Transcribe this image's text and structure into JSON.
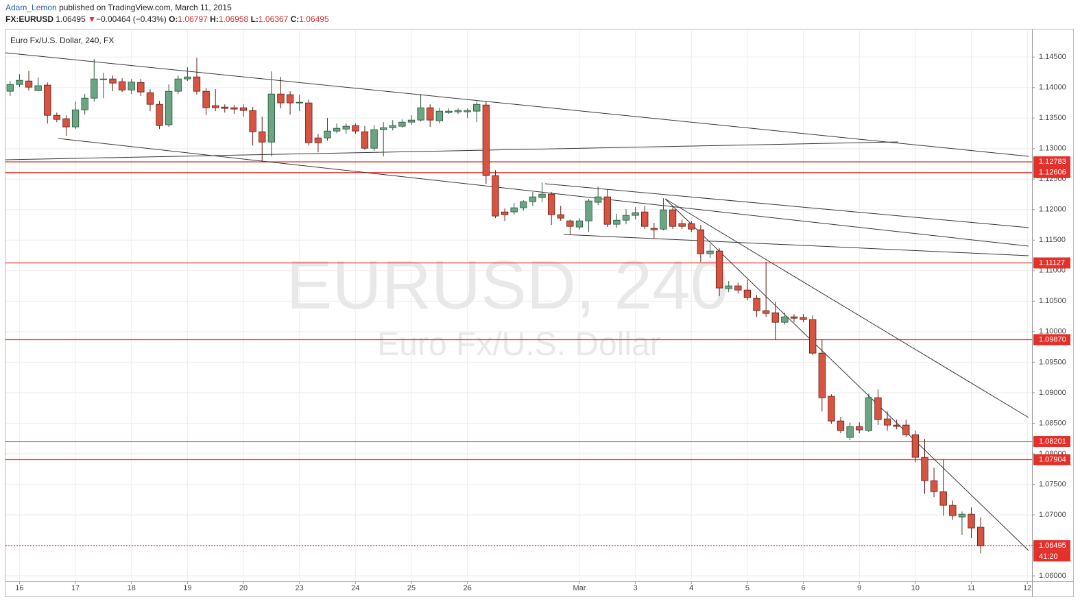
{
  "header": {
    "author": "Adam_Lemon",
    "published": "published on TradingView.com, March 11, 2015",
    "symbol": "FX:EURUSD",
    "price": "1.06495",
    "arrow": "▼",
    "change": "−0.00464 (−0.43%)",
    "ohlc": [
      {
        "label": "O:",
        "value": "1.06797"
      },
      {
        "label": "H:",
        "value": "1.06958"
      },
      {
        "label": "L:",
        "value": "1.06367"
      },
      {
        "label": "C:",
        "value": "1.06495"
      }
    ]
  },
  "chart_data": {
    "type": "candlestick",
    "legend": "Euro Fx/U.S. Dollar, 240, FX",
    "watermark": [
      "EURUSD, 240",
      "Euro Fx/U.S. Dollar"
    ],
    "categories": [
      null,
      "16",
      null,
      null,
      null,
      null,
      null,
      "17",
      null,
      null,
      null,
      null,
      null,
      "18",
      null,
      null,
      null,
      null,
      null,
      "19",
      null,
      null,
      null,
      null,
      null,
      "20",
      null,
      null,
      null,
      null,
      null,
      "23",
      null,
      null,
      null,
      null,
      null,
      "24",
      null,
      null,
      null,
      null,
      null,
      "25",
      null,
      null,
      null,
      null,
      null,
      "26",
      null,
      null,
      null,
      null,
      null,
      null,
      null,
      null,
      null,
      null,
      null,
      "Mar",
      null,
      null,
      null,
      null,
      null,
      "3",
      null,
      null,
      null,
      null,
      null,
      "4",
      null,
      null,
      null,
      null,
      null,
      "5",
      null,
      null,
      null,
      null,
      null,
      "6",
      null,
      null,
      null,
      null,
      null,
      "9",
      null,
      null,
      null,
      null,
      null,
      "10",
      null,
      null,
      null,
      null,
      null,
      "11",
      null,
      null,
      null,
      null,
      null,
      "12"
    ],
    "series": {
      "name": "EURUSD",
      "up_color": "#6ba583",
      "down_color": "#d75442",
      "open": [
        1.13939,
        1.14051,
        1.14107,
        1.1395,
        1.1404,
        1.13545,
        1.13489,
        1.13355,
        1.13635,
        1.13826,
        1.14129,
        1.14141,
        1.14096,
        1.1396,
        1.14084,
        1.13916,
        1.13725,
        1.13389,
        1.13939,
        1.14141,
        1.14174,
        1.13939,
        1.13703,
        1.1368,
        1.13669,
        1.13669,
        1.13624,
        1.13276,
        1.13107,
        1.13894,
        1.13883,
        1.13759,
        1.13748,
        1.13175,
        1.13175,
        1.13287,
        1.1332,
        1.13377,
        1.13276,
        1.13006,
        1.1331,
        1.13343,
        1.13366,
        1.13433,
        1.13467,
        1.13669,
        1.13456,
        1.1359,
        1.13602,
        1.13602,
        1.13613,
        1.13714,
        1.12557,
        1.11962,
        1.11962,
        1.1203,
        1.1213,
        1.12198,
        1.12254,
        1.11917,
        1.11816,
        1.11715,
        1.11816,
        1.1212,
        1.12209,
        1.1176,
        1.11827,
        1.11906,
        1.11962,
        1.11693,
        1.11681,
        1.11996,
        1.11771,
        1.11771,
        1.1167,
        1.11277,
        1.11322,
        1.10705,
        1.1075,
        1.10682,
        1.10547,
        1.10345,
        1.10311,
        1.10154,
        1.10244,
        1.10233,
        1.10199,
        1.09649,
        1.08942,
        1.08537,
        1.08268,
        1.08448,
        1.0838,
        1.08919,
        1.08571,
        1.0847,
        1.0847,
        1.08313,
        1.07942,
        1.0756,
        1.0738,
        1.07156,
        1.06965,
        1.0701,
        1.06797,
        null,
        null,
        null,
        null,
        null
      ],
      "high": [
        1.14107,
        1.14219,
        1.14275,
        1.14163,
        1.14084,
        1.1359,
        1.13545,
        1.1377,
        1.13894,
        1.14466,
        1.14242,
        1.14197,
        1.14152,
        1.14141,
        1.14141,
        1.13972,
        1.13781,
        1.14051,
        1.14197,
        1.14332,
        1.14489,
        1.13995,
        1.13972,
        1.13725,
        1.13714,
        1.13725,
        1.1368,
        1.13523,
        1.14264,
        1.14174,
        1.13939,
        1.13883,
        1.13804,
        1.13242,
        1.135,
        1.13411,
        1.13411,
        1.13411,
        1.13366,
        1.13388,
        1.13433,
        1.13467,
        1.13478,
        1.13545,
        1.13894,
        1.13725,
        1.13669,
        1.13658,
        1.13658,
        1.13658,
        1.1377,
        1.1377,
        1.12647,
        1.12018,
        1.12108,
        1.12153,
        1.12288,
        1.12445,
        1.12288,
        1.12063,
        1.11838,
        1.11861,
        1.12175,
        1.12378,
        1.12333,
        1.11928,
        1.12007,
        1.12041,
        1.12063,
        1.11782,
        1.12187,
        1.12041,
        1.11838,
        1.11816,
        1.11748,
        1.11434,
        1.11367,
        1.10828,
        1.10806,
        1.10851,
        1.10604,
        1.11142,
        1.10491,
        1.10312,
        1.10289,
        1.10289,
        1.10267,
        1.09874,
        1.08975,
        1.08605,
        1.08514,
        1.08514,
        1.08986,
        1.09053,
        1.08694,
        1.08559,
        1.08559,
        1.0838,
        1.08245,
        1.07773,
        1.07908,
        1.07234,
        1.07054,
        1.07122,
        1.06958,
        null,
        null,
        null,
        null,
        null
      ],
      "low": [
        1.1386,
        1.14006,
        1.1395,
        1.13939,
        1.1341,
        1.13433,
        1.13209,
        1.13321,
        1.13557,
        1.1377,
        1.13826,
        1.13939,
        1.13927,
        1.13894,
        1.1386,
        1.13613,
        1.13321,
        1.13355,
        1.13894,
        1.14107,
        1.13883,
        1.13545,
        1.13613,
        1.1359,
        1.13568,
        1.13523,
        1.13051,
        1.12793,
        1.12872,
        1.13658,
        1.13557,
        1.13613,
        1.13051,
        1.12939,
        1.1313,
        1.13253,
        1.13242,
        1.13242,
        1.12984,
        1.12961,
        1.12872,
        1.13298,
        1.13343,
        1.13388,
        1.13444,
        1.13355,
        1.1341,
        1.13568,
        1.13568,
        1.135,
        1.13433,
        1.12422,
        1.11861,
        1.11816,
        1.11917,
        1.11985,
        1.12063,
        1.12119,
        1.11748,
        1.11816,
        1.11591,
        1.1167,
        1.11636,
        1.12074,
        1.11715,
        1.11704,
        1.1176,
        1.11838,
        1.11681,
        1.11524,
        1.11659,
        1.11681,
        1.11681,
        1.11636,
        1.11142,
        1.1121,
        1.10581,
        1.10648,
        1.10626,
        1.10513,
        1.10244,
        1.10244,
        1.09862,
        1.1012,
        1.10154,
        1.10154,
        1.09615,
        1.08694,
        1.08492,
        1.08335,
        1.08223,
        1.08335,
        1.08357,
        1.0847,
        1.0838,
        1.08402,
        1.08279,
        1.07863,
        1.07346,
        1.0729,
        1.06987,
        1.0692,
        1.06673,
        1.06617,
        1.06367,
        null,
        null,
        null,
        null,
        null
      ],
      "close": [
        1.14051,
        1.14118,
        1.14006,
        1.1403,
        1.13545,
        1.13478,
        1.13355,
        1.13635,
        1.13826,
        1.14141,
        1.14141,
        1.14073,
        1.1396,
        1.1409,
        1.13927,
        1.13725,
        1.13377,
        1.13939,
        1.14141,
        1.14174,
        1.13939,
        1.13669,
        1.13669,
        1.13658,
        1.13647,
        1.13624,
        1.13276,
        1.13107,
        1.13894,
        1.13748,
        1.13748,
        1.13759,
        1.13096,
        1.13096,
        1.13287,
        1.13332,
        1.13366,
        1.13287,
        1.13006,
        1.1331,
        1.13343,
        1.13377,
        1.13433,
        1.13467,
        1.13669,
        1.13467,
        1.13613,
        1.13613,
        1.13624,
        1.13624,
        1.13725,
        1.12557,
        1.11895,
        1.11917,
        1.1203,
        1.1213,
        1.12209,
        1.12254,
        1.11917,
        1.11861,
        1.11726,
        1.11816,
        1.12142,
        1.12209,
        1.1176,
        1.11827,
        1.11906,
        1.11951,
        1.11726,
        1.1167,
        1.11996,
        1.11726,
        1.11726,
        1.11681,
        1.11277,
        1.11322,
        1.10716,
        1.1075,
        1.10682,
        1.10558,
        1.10345,
        1.103,
        1.10154,
        1.10244,
        1.10221,
        1.10199,
        1.09649,
        1.08919,
        1.08537,
        1.0838,
        1.08448,
        1.08391,
        1.08919,
        1.0856,
        1.0847,
        1.08448,
        1.08313,
        1.07942,
        1.0756,
        1.0738,
        1.07156,
        1.06987,
        1.0701,
        1.06785,
        1.06495,
        null,
        null,
        null,
        null,
        null
      ]
    },
    "ylim": [
      1.0591,
      1.1494
    ],
    "yticks": [
      {
        "value": 1.06,
        "label": "1.06000"
      },
      {
        "value": 1.065,
        "label": "1.06500"
      },
      {
        "value": 1.07,
        "label": "1.07000"
      },
      {
        "value": 1.075,
        "label": "1.07500"
      },
      {
        "value": 1.08,
        "label": "1.08000"
      },
      {
        "value": 1.085,
        "label": "1.08500"
      },
      {
        "value": 1.09,
        "label": "1.09000"
      },
      {
        "value": 1.095,
        "label": "1.09500"
      },
      {
        "value": 1.1,
        "label": "1.10000"
      },
      {
        "value": 1.105,
        "label": "1.10500"
      },
      {
        "value": 1.11,
        "label": "1.11000"
      },
      {
        "value": 1.115,
        "label": "1.11500"
      },
      {
        "value": 1.12,
        "label": "1.12000"
      },
      {
        "value": 1.125,
        "label": "1.12500"
      },
      {
        "value": 1.13,
        "label": "1.13000"
      },
      {
        "value": 1.135,
        "label": "1.13500"
      },
      {
        "value": 1.14,
        "label": "1.14000"
      },
      {
        "value": 1.145,
        "label": "1.14500"
      }
    ],
    "grid": true,
    "level_color": "#e4302a",
    "levels": [
      1.12783,
      1.12606,
      1.11127,
      {
        "value": 1.0987,
        "label": "1.09870"
      },
      1.08201,
      1.07904
    ],
    "last": 1.06495,
    "countdown": "41:20"
  }
}
